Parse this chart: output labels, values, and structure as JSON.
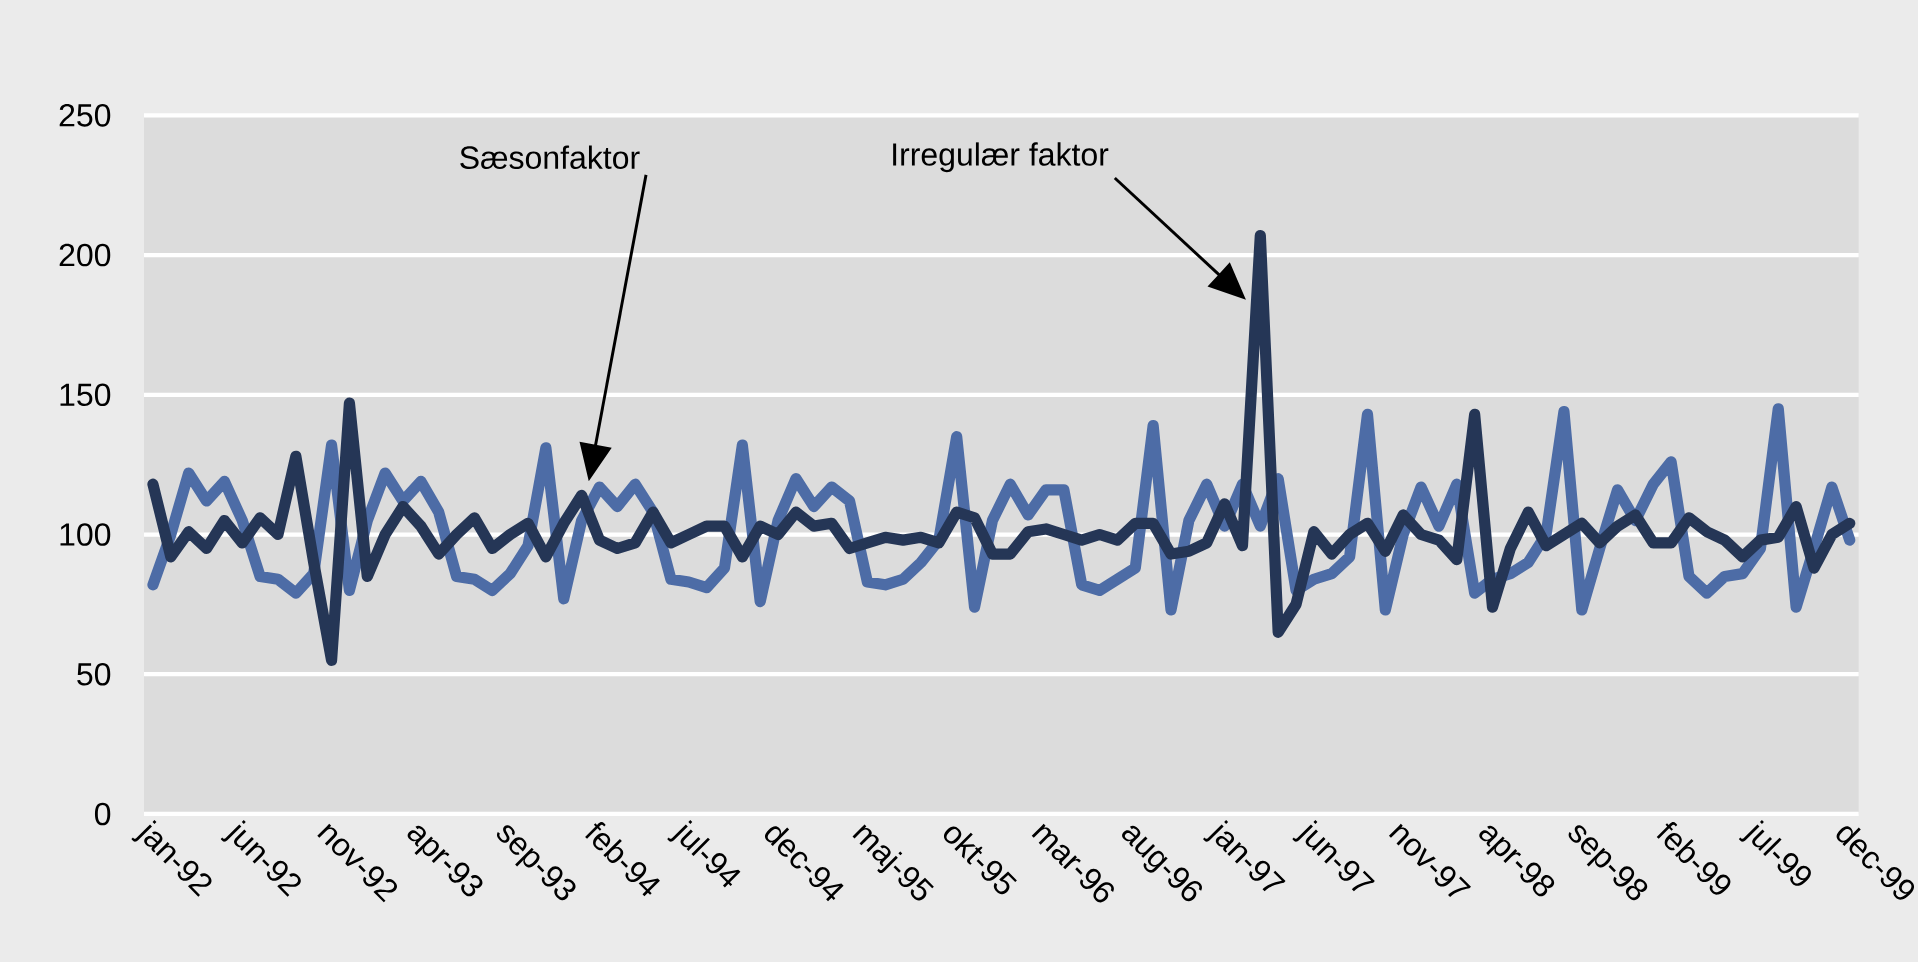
{
  "chart_data": {
    "type": "line",
    "categories": [
      "jan-92",
      null,
      null,
      null,
      null,
      "jun-92",
      null,
      null,
      null,
      null,
      "nov-92",
      null,
      null,
      null,
      null,
      "apr-93",
      null,
      null,
      null,
      null,
      "sep-93",
      null,
      null,
      null,
      null,
      "feb-94",
      null,
      null,
      null,
      null,
      "jul-94",
      null,
      null,
      null,
      null,
      "dec-94",
      null,
      null,
      null,
      null,
      "maj-95",
      null,
      null,
      null,
      null,
      "okt-95",
      null,
      null,
      null,
      null,
      "mar-96",
      null,
      null,
      null,
      null,
      "aug-96",
      null,
      null,
      null,
      null,
      "jan-97",
      null,
      null,
      null,
      null,
      "jun-97",
      null,
      null,
      null,
      null,
      "nov-97",
      null,
      null,
      null,
      null,
      "apr-98",
      null,
      null,
      null,
      null,
      "sep-98",
      null,
      null,
      null,
      null,
      "feb-99",
      null,
      null,
      null,
      null,
      "jul-99",
      null,
      null,
      null,
      null,
      "dec-99"
    ],
    "series": [
      {
        "color": "#4d6ca6",
        "values": [
          82,
          100,
          122,
          112,
          119,
          105,
          85,
          84,
          79,
          86,
          132,
          80,
          105,
          122,
          112,
          119,
          108,
          85,
          84,
          80,
          86,
          96,
          131,
          77,
          105,
          117,
          110,
          118,
          108,
          84,
          83,
          81,
          88,
          132,
          76,
          105,
          120,
          110,
          117,
          112,
          83,
          82,
          84,
          90,
          98,
          135,
          74,
          105,
          118,
          107,
          116,
          116,
          82,
          80,
          84,
          88,
          139,
          73,
          105,
          118,
          103,
          118,
          103,
          120,
          80,
          84,
          86,
          92,
          143,
          73,
          100,
          117,
          103,
          118,
          79,
          84,
          86,
          90,
          100,
          144,
          73,
          95,
          116,
          105,
          118,
          126,
          85,
          79,
          85,
          86,
          95,
          145,
          74,
          95,
          117,
          98
        ]
      },
      {
        "color": "#253656",
        "values": [
          118,
          92,
          101,
          95,
          105,
          97,
          106,
          100,
          128,
          90,
          55,
          147,
          85,
          100,
          110,
          103,
          93,
          100,
          106,
          95,
          100,
          104,
          92,
          104,
          114,
          98,
          95,
          97,
          108,
          97,
          100,
          103,
          103,
          92,
          103,
          100,
          108,
          103,
          104,
          95,
          97,
          99,
          98,
          99,
          97,
          108,
          106,
          93,
          93,
          101,
          102,
          100,
          98,
          100,
          98,
          104,
          104,
          93,
          94,
          97,
          111,
          96,
          207,
          65,
          75,
          101,
          93,
          100,
          104,
          94,
          107,
          100,
          98,
          91,
          143,
          74,
          95,
          108,
          96,
          100,
          104,
          97,
          103,
          107,
          97,
          97,
          106,
          101,
          98,
          92,
          98,
          99,
          110,
          88,
          100,
          104
        ]
      }
    ],
    "ylim": [
      0,
      250
    ],
    "yticks": [
      0,
      50,
      100,
      150,
      200,
      250
    ],
    "grid": "y",
    "marker": "none",
    "line_style": "solid",
    "annotations": [
      "Sæsonfaktor",
      "Irregulær faktor"
    ]
  }
}
